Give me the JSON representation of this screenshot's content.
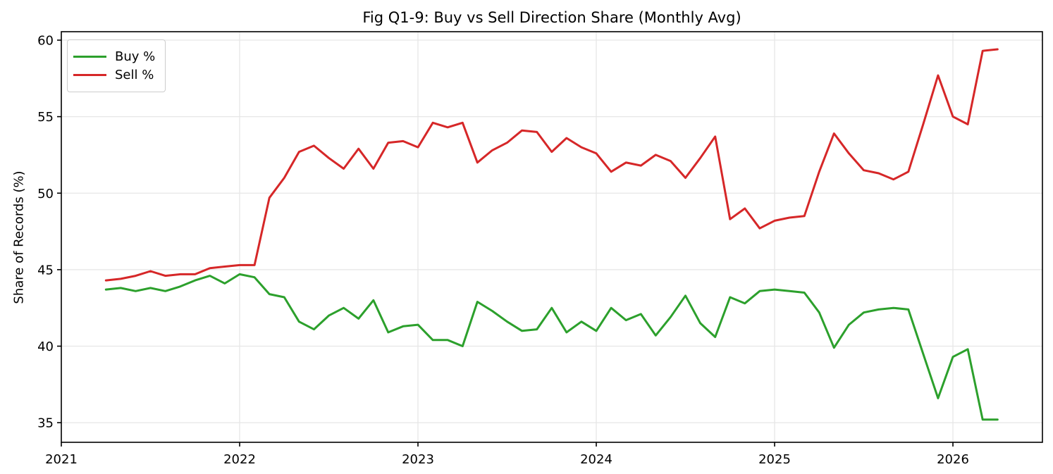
{
  "chart_data": {
    "type": "line",
    "title": "Fig Q1-9: Buy vs Sell Direction Share (Monthly Avg)",
    "xlabel": "",
    "ylabel": "Share of Records (%)",
    "x_tick_labels": [
      "2021",
      "2022",
      "2023",
      "2024",
      "2025",
      "2026"
    ],
    "y_tick_labels": [
      "35",
      "40",
      "45",
      "50",
      "55",
      "60"
    ],
    "y_ticks": [
      35,
      40,
      45,
      50,
      55,
      60
    ],
    "ylim": [
      33.7,
      60.6
    ],
    "xlim_years": [
      2021.0,
      2026.5
    ],
    "grid": true,
    "legend_position": "upper left",
    "months": [
      "2021-04",
      "2021-05",
      "2021-06",
      "2021-07",
      "2021-08",
      "2021-09",
      "2021-10",
      "2021-11",
      "2021-12",
      "2022-01",
      "2022-02",
      "2022-03",
      "2022-04",
      "2022-05",
      "2022-06",
      "2022-07",
      "2022-08",
      "2022-09",
      "2022-10",
      "2022-11",
      "2022-12",
      "2023-01",
      "2023-02",
      "2023-03",
      "2023-04",
      "2023-05",
      "2023-06",
      "2023-07",
      "2023-08",
      "2023-09",
      "2023-10",
      "2023-11",
      "2023-12",
      "2024-01",
      "2024-02",
      "2024-03",
      "2024-04",
      "2024-05",
      "2024-06",
      "2024-07",
      "2024-08",
      "2024-09",
      "2024-10",
      "2024-11",
      "2024-12",
      "2025-01",
      "2025-02",
      "2025-03",
      "2025-04",
      "2025-05",
      "2025-06",
      "2025-07",
      "2025-08",
      "2025-09",
      "2025-10",
      "2025-11",
      "2025-12",
      "2026-01",
      "2026-02",
      "2026-03",
      "2026-04"
    ],
    "series": [
      {
        "name": "Buy %",
        "color": "#2ca02c",
        "values": [
          43.7,
          43.8,
          43.6,
          43.8,
          43.6,
          43.9,
          44.3,
          44.6,
          44.1,
          44.7,
          44.5,
          43.4,
          43.2,
          41.6,
          41.1,
          42.0,
          42.5,
          41.8,
          43.0,
          40.9,
          41.3,
          41.4,
          40.4,
          40.4,
          40.0,
          42.9,
          42.3,
          41.6,
          41.0,
          41.1,
          42.5,
          40.9,
          41.6,
          41.0,
          42.5,
          41.7,
          42.1,
          40.7,
          41.9,
          43.3,
          41.5,
          40.6,
          43.2,
          42.8,
          43.6,
          43.7,
          43.6,
          43.5,
          42.2,
          39.9,
          41.4,
          42.2,
          42.4,
          42.5,
          42.4,
          39.5,
          36.6,
          39.3,
          39.8,
          35.2,
          35.2
        ]
      },
      {
        "name": "Sell %",
        "color": "#d62728",
        "values": [
          44.3,
          44.4,
          44.6,
          44.9,
          44.6,
          44.7,
          44.7,
          45.1,
          45.2,
          45.3,
          45.3,
          49.7,
          51.0,
          52.7,
          53.1,
          52.3,
          51.6,
          52.9,
          51.6,
          53.3,
          53.4,
          53.0,
          54.6,
          54.3,
          54.6,
          52.0,
          52.8,
          53.3,
          54.1,
          54.0,
          52.7,
          53.6,
          53.0,
          52.6,
          51.4,
          52.0,
          51.8,
          52.5,
          52.1,
          51.0,
          52.3,
          53.7,
          48.3,
          49.0,
          47.7,
          48.2,
          48.4,
          48.5,
          51.4,
          53.9,
          52.6,
          51.5,
          51.3,
          50.9,
          51.4,
          54.5,
          57.7,
          55.0,
          54.5,
          59.3,
          59.4
        ]
      }
    ],
    "colors": {
      "grid": "#e6e6e6",
      "spine": "#000000",
      "tick_label": "#000000",
      "background": "#ffffff"
    }
  }
}
